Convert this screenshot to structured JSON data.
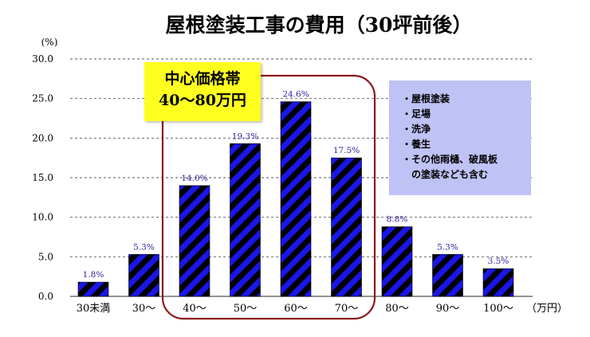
{
  "chart_data": {
    "type": "bar",
    "title": "屋根塗装工事の費用（30坪前後）",
    "unit_y": "(%)",
    "unit_x": "（万円）",
    "categories": [
      "30未満",
      "30〜",
      "40〜",
      "50〜",
      "60〜",
      "70〜",
      "80〜",
      "90〜",
      "100〜"
    ],
    "values": [
      1.8,
      5.3,
      14.0,
      19.3,
      24.6,
      17.5,
      8.8,
      5.3,
      3.5
    ],
    "value_labels": [
      "1.8%",
      "5.3%",
      "14.0%",
      "19.3%",
      "24.6%",
      "17.5%",
      "8.8%",
      "5.3%",
      "3.5%"
    ],
    "y_ticks": [
      "0.0",
      "5.0",
      "10.0",
      "15.0",
      "20.0",
      "25.0",
      "30.0"
    ],
    "ylim": [
      0,
      30
    ],
    "grid": true,
    "bar_fill": "diagonal stripes",
    "colors": {
      "stripe_a": "#1a16e8",
      "stripe_b": "#000000",
      "label": "#2a1f9e",
      "highlight_border": "#8b1a1a",
      "callout_bg": "#ffff1f",
      "note_bg": "#bfc2f5"
    }
  },
  "callout": {
    "line1": "中心価格帯",
    "line2": "40〜80万円"
  },
  "notes": [
    {
      "text": "・屋根塗装"
    },
    {
      "text": "・足場"
    },
    {
      "text": "・洗浄"
    },
    {
      "text": "・養生"
    },
    {
      "text": "・その他雨樋、破風板",
      "cont": "の塗装なども含む"
    }
  ]
}
